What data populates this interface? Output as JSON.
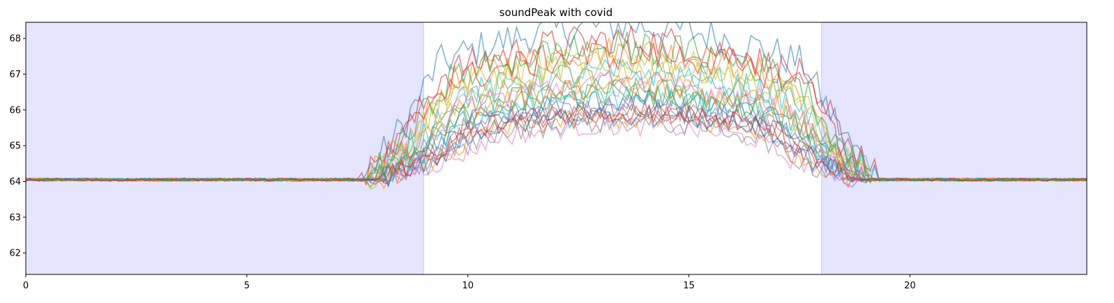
{
  "chart_data": {
    "type": "line",
    "title": "soundPeak with covid",
    "xlabel": "",
    "ylabel": "",
    "xlim": [
      0,
      24
    ],
    "ylim": [
      61.4,
      68.45
    ],
    "xticks": [
      0,
      5,
      10,
      15,
      20
    ],
    "yticks": [
      62,
      63,
      64,
      65,
      66,
      67,
      68
    ],
    "shaded_regions": [
      {
        "x0": 0,
        "x1": 9,
        "color": "#e5e5ff"
      },
      {
        "x0": 18,
        "x1": 24,
        "color": "#e5e5ff"
      }
    ],
    "series_colors": [
      "#1f77b4",
      "#ff7f0e",
      "#2ca02c",
      "#d62728",
      "#9467bd",
      "#8c564b",
      "#e377c2",
      "#7f7f7f",
      "#bcbd22",
      "#17becf"
    ],
    "line_opacity": 0.55,
    "series_profiles": [
      {
        "peak": 4.3,
        "rise_start": 7.6,
        "rise_end": 9.3,
        "fall_start": 17.6,
        "fall_end": 19.3
      },
      {
        "peak": 3.6,
        "rise_start": 7.7,
        "rise_end": 9.6,
        "fall_start": 17.3,
        "fall_end": 19.0
      },
      {
        "peak": 2.5,
        "rise_start": 7.8,
        "rise_end": 9.8,
        "fall_start": 17.2,
        "fall_end": 19.2
      },
      {
        "peak": 3.9,
        "rise_start": 7.7,
        "rise_end": 9.4,
        "fall_start": 17.5,
        "fall_end": 19.1
      },
      {
        "peak": 1.8,
        "rise_start": 8.0,
        "rise_end": 10.2,
        "fall_start": 16.8,
        "fall_end": 18.8
      },
      {
        "peak": 2.0,
        "rise_start": 7.9,
        "rise_end": 10.0,
        "fall_start": 17.0,
        "fall_end": 18.9
      },
      {
        "peak": 1.5,
        "rise_start": 8.1,
        "rise_end": 10.5,
        "fall_start": 16.5,
        "fall_end": 18.7
      },
      {
        "peak": 2.8,
        "rise_start": 7.8,
        "rise_end": 9.7,
        "fall_start": 17.3,
        "fall_end": 19.0
      },
      {
        "peak": 3.3,
        "rise_start": 7.8,
        "rise_end": 9.5,
        "fall_start": 17.4,
        "fall_end": 19.0
      },
      {
        "peak": 3.0,
        "rise_start": 7.7,
        "rise_end": 9.6,
        "fall_start": 17.4,
        "fall_end": 19.3
      },
      {
        "peak": 2.2,
        "rise_start": 7.9,
        "rise_end": 9.9,
        "fall_start": 17.1,
        "fall_end": 19.0
      },
      {
        "peak": 1.7,
        "rise_start": 8.0,
        "rise_end": 10.3,
        "fall_start": 16.7,
        "fall_end": 18.8
      },
      {
        "peak": 2.4,
        "rise_start": 7.8,
        "rise_end": 9.9,
        "fall_start": 17.2,
        "fall_end": 19.1
      },
      {
        "peak": 3.5,
        "rise_start": 7.6,
        "rise_end": 9.4,
        "fall_start": 17.8,
        "fall_end": 19.4
      },
      {
        "peak": 2.1,
        "rise_start": 8.0,
        "rise_end": 10.0,
        "fall_start": 17.0,
        "fall_end": 18.9
      },
      {
        "peak": 1.9,
        "rise_start": 7.9,
        "rise_end": 10.1,
        "fall_start": 16.9,
        "fall_end": 18.9
      },
      {
        "peak": 2.7,
        "rise_start": 7.8,
        "rise_end": 9.8,
        "fall_start": 17.2,
        "fall_end": 19.0
      },
      {
        "peak": 1.6,
        "rise_start": 8.1,
        "rise_end": 10.4,
        "fall_start": 16.6,
        "fall_end": 18.6
      },
      {
        "peak": 3.1,
        "rise_start": 7.7,
        "rise_end": 9.6,
        "fall_start": 17.3,
        "fall_end": 19.1
      },
      {
        "peak": 2.3,
        "rise_start": 7.9,
        "rise_end": 9.9,
        "fall_start": 17.1,
        "fall_end": 19.0
      },
      {
        "peak": 1.8,
        "rise_start": 8.0,
        "rise_end": 10.2,
        "fall_start": 16.8,
        "fall_end": 18.8
      },
      {
        "peak": 2.6,
        "rise_start": 7.8,
        "rise_end": 9.7,
        "fall_start": 17.2,
        "fall_end": 19.1
      },
      {
        "peak": 3.7,
        "rise_start": 7.7,
        "rise_end": 9.5,
        "fall_start": 17.5,
        "fall_end": 19.2
      },
      {
        "peak": 1.9,
        "rise_start": 8.0,
        "rise_end": 10.1,
        "fall_start": 16.9,
        "fall_end": 18.8
      }
    ],
    "baseline": 64.05,
    "sample_step_hours": 0.1,
    "noise_amplitude": 0.5
  }
}
